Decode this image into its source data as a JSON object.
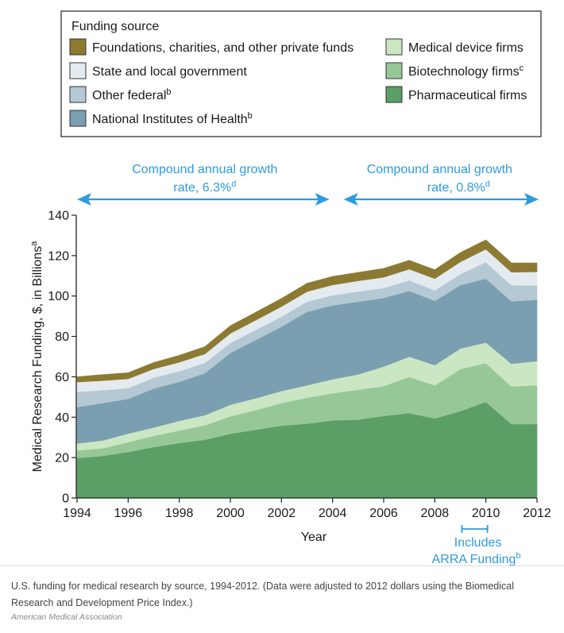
{
  "chart_data": {
    "type": "area",
    "stacked": true,
    "ylabel": "Medical Research Funding, $, in Billions",
    "ylabel_sup": "a",
    "xlabel": "Year",
    "ylim": [
      0,
      140
    ],
    "xlim": [
      1994,
      2012
    ],
    "yticks": [
      "0",
      "20",
      "40",
      "60",
      "80",
      "100",
      "120",
      "140"
    ],
    "xticks": [
      "1994",
      "1996",
      "1998",
      "2000",
      "2002",
      "2004",
      "2006",
      "2008",
      "2010",
      "2012"
    ],
    "x": [
      1994,
      1995,
      1996,
      1997,
      1998,
      1999,
      2000,
      2001,
      2002,
      2003,
      2004,
      2005,
      2006,
      2007,
      2008,
      2009,
      2010,
      2011,
      2012
    ],
    "series": [
      {
        "name": "Pharmaceutical firms",
        "sup": "",
        "color": "#5b9e66",
        "values": [
          19.8,
          20.8,
          22.8,
          25.2,
          27.2,
          28.8,
          31.8,
          33.8,
          35.8,
          36.8,
          38.4,
          38.8,
          40.6,
          42.0,
          39.4,
          43.0,
          47.6,
          36.6,
          36.6
        ]
      },
      {
        "name": "Biotechnology firms",
        "sup": "c",
        "color": "#96c897",
        "values": [
          3.8,
          3.8,
          4.8,
          5.6,
          6.2,
          7.2,
          8.6,
          9.7,
          11.2,
          12.8,
          13.5,
          14.8,
          14.8,
          18.0,
          16.4,
          20.8,
          19.2,
          18.6,
          19.2
        ]
      },
      {
        "name": "Medical device firms",
        "sup": "",
        "color": "#cbe6c3",
        "values": [
          3.4,
          3.9,
          4.3,
          4.1,
          4.8,
          5.0,
          5.8,
          5.9,
          6.0,
          6.2,
          6.9,
          7.6,
          9.7,
          10.0,
          10.0,
          10.2,
          10.2,
          11.3,
          12.0
        ]
      },
      {
        "name": "National Institutes of Health",
        "sup": "b",
        "color": "#7a9fb0",
        "values": [
          18.0,
          18.5,
          17.2,
          19.3,
          19.3,
          20.8,
          25.6,
          28.9,
          31.8,
          36.4,
          36.6,
          36.0,
          33.9,
          32.6,
          31.8,
          31.4,
          31.6,
          30.9,
          30.4
        ]
      },
      {
        "name": "Other federal",
        "sup": "b",
        "color": "#b4c9d3",
        "values": [
          7.6,
          6.4,
          5.3,
          5.4,
          5.3,
          5.1,
          5.0,
          5.0,
          5.0,
          5.0,
          5.0,
          5.0,
          5.0,
          5.2,
          5.2,
          5.5,
          8.2,
          8.0,
          7.0
        ]
      },
      {
        "name": "State and local government",
        "sup": "",
        "color": "#e3ebf0",
        "values": [
          4.8,
          4.7,
          4.6,
          4.3,
          4.4,
          4.4,
          4.7,
          4.8,
          5.0,
          5.0,
          5.1,
          5.3,
          5.3,
          5.5,
          5.8,
          6.0,
          6.4,
          6.4,
          6.8
        ]
      },
      {
        "name": "Foundations, charities, and other private funds",
        "sup": "",
        "color": "#8c7a32",
        "values": [
          2.6,
          3.0,
          3.0,
          3.2,
          3.4,
          3.6,
          3.8,
          3.9,
          4.0,
          4.1,
          4.2,
          4.2,
          4.4,
          4.4,
          4.4,
          4.6,
          4.6,
          4.6,
          4.4
        ]
      }
    ],
    "legend": {
      "title": "Funding source",
      "placement": "top",
      "left_column": [
        {
          "label": "Foundations, charities, and other private funds",
          "sup": "",
          "color": "#8c7a32"
        },
        {
          "label": "State and local government",
          "sup": "",
          "color": "#e3ebf0"
        },
        {
          "label": "Other federal",
          "sup": "b",
          "color": "#b4c9d3"
        },
        {
          "label": "National Institutes of Health",
          "sup": "b",
          "color": "#7a9fb0"
        }
      ],
      "right_column": [
        {
          "label": "Medical device firms",
          "sup": "",
          "color": "#cbe6c3"
        },
        {
          "label": "Biotechnology firms",
          "sup": "c",
          "color": "#96c897"
        },
        {
          "label": "Pharmaceutical firms",
          "sup": "",
          "color": "#5b9e66"
        }
      ]
    },
    "annotations": {
      "growth_left": {
        "line1": "Compound annual growth",
        "line2": "rate, 6.3%",
        "sup": "d",
        "from": 1994,
        "to": 2004
      },
      "growth_right": {
        "line1": "Compound annual growth",
        "line2": "rate, 0.8%",
        "sup": "d",
        "from": 2004,
        "to": 2012
      },
      "arra": {
        "line1": "Includes",
        "line2": "ARRA Funding",
        "sup": "b",
        "from": 2009,
        "to": 2010
      }
    },
    "colors": {
      "annotation": "#2e9be0"
    }
  },
  "caption": "U.S. funding for medical research by source, 1994-2012. (Data were adjusted to 2012 dollars using the Biomedical Research and Development Price Index.)",
  "credit": "American Medical Association"
}
